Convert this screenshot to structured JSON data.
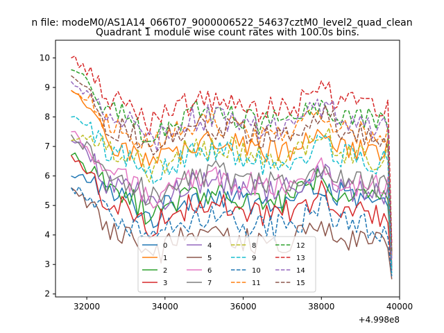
{
  "chart_data": {
    "type": "line",
    "suptitle": "n file: modeM0/AS1A14_066T07_9000006522_54637cztM0_level2_quad_clean",
    "title": "Quadrant 1 module wise count rates with 100.0s bins.",
    "xlabel": "",
    "ylabel": "",
    "x_offset_label": "+4.998e8",
    "xlim": [
      31200,
      40000
    ],
    "ylim": [
      1.9,
      10.6
    ],
    "xticks": [
      32000,
      34000,
      36000,
      38000,
      40000
    ],
    "xtick_labels": [
      "32000",
      "34000",
      "36000",
      "38000",
      "40000"
    ],
    "yticks": [
      2,
      3,
      4,
      5,
      6,
      7,
      8,
      9,
      10
    ],
    "ytick_labels": [
      "2",
      "3",
      "4",
      "5",
      "6",
      "7",
      "8",
      "9",
      "10"
    ],
    "grid": false,
    "legend_position": "lower-center",
    "legend_columns": 4,
    "n_points": 83,
    "x_start": 31600,
    "x_step": 100,
    "series": [
      {
        "name": "0",
        "color": "#1f77b4",
        "linestyle": "solid",
        "start": 6.0,
        "mean": 5.2,
        "end": 3.3
      },
      {
        "name": "1",
        "color": "#ff7f0e",
        "linestyle": "solid",
        "start": 8.9,
        "mean": 7.0,
        "end": 3.3
      },
      {
        "name": "2",
        "color": "#2ca02c",
        "linestyle": "solid",
        "start": 6.7,
        "mean": 5.3,
        "end": 3.0
      },
      {
        "name": "3",
        "color": "#d62728",
        "linestyle": "solid",
        "start": 6.7,
        "mean": 4.9,
        "end": 2.8
      },
      {
        "name": "4",
        "color": "#9467bd",
        "linestyle": "solid",
        "start": 7.2,
        "mean": 5.6,
        "end": 2.9
      },
      {
        "name": "5",
        "color": "#8c564b",
        "linestyle": "solid",
        "start": 5.6,
        "mean": 3.9,
        "end": 2.5
      },
      {
        "name": "6",
        "color": "#e377c2",
        "linestyle": "solid",
        "start": 7.5,
        "mean": 5.8,
        "end": 3.0
      },
      {
        "name": "7",
        "color": "#7f7f7f",
        "linestyle": "solid",
        "start": 7.4,
        "mean": 5.9,
        "end": 2.9
      },
      {
        "name": "8",
        "color": "#bcbd22",
        "linestyle": "dashed",
        "start": 7.2,
        "mean": 6.8,
        "end": 3.4
      },
      {
        "name": "9",
        "color": "#17becf",
        "linestyle": "dashed",
        "start": 8.0,
        "mean": 6.6,
        "end": 2.7
      },
      {
        "name": "10",
        "color": "#1f77b4",
        "linestyle": "dashed",
        "start": 5.6,
        "mean": 4.4,
        "end": 2.6
      },
      {
        "name": "11",
        "color": "#ff7f0e",
        "linestyle": "dashed",
        "start": 8.9,
        "mean": 7.6,
        "end": 3.4
      },
      {
        "name": "12",
        "color": "#2ca02c",
        "linestyle": "dashed",
        "start": 9.6,
        "mean": 8.0,
        "end": 3.4
      },
      {
        "name": "13",
        "color": "#d62728",
        "linestyle": "dashed",
        "start": 10.0,
        "mean": 8.4,
        "end": 3.7
      },
      {
        "name": "14",
        "color": "#9467bd",
        "linestyle": "dashed",
        "start": 9.2,
        "mean": 7.8,
        "end": 3.2
      },
      {
        "name": "15",
        "color": "#8c564b",
        "linestyle": "dashed",
        "start": 9.4,
        "mean": 7.5,
        "end": 3.4
      }
    ]
  }
}
